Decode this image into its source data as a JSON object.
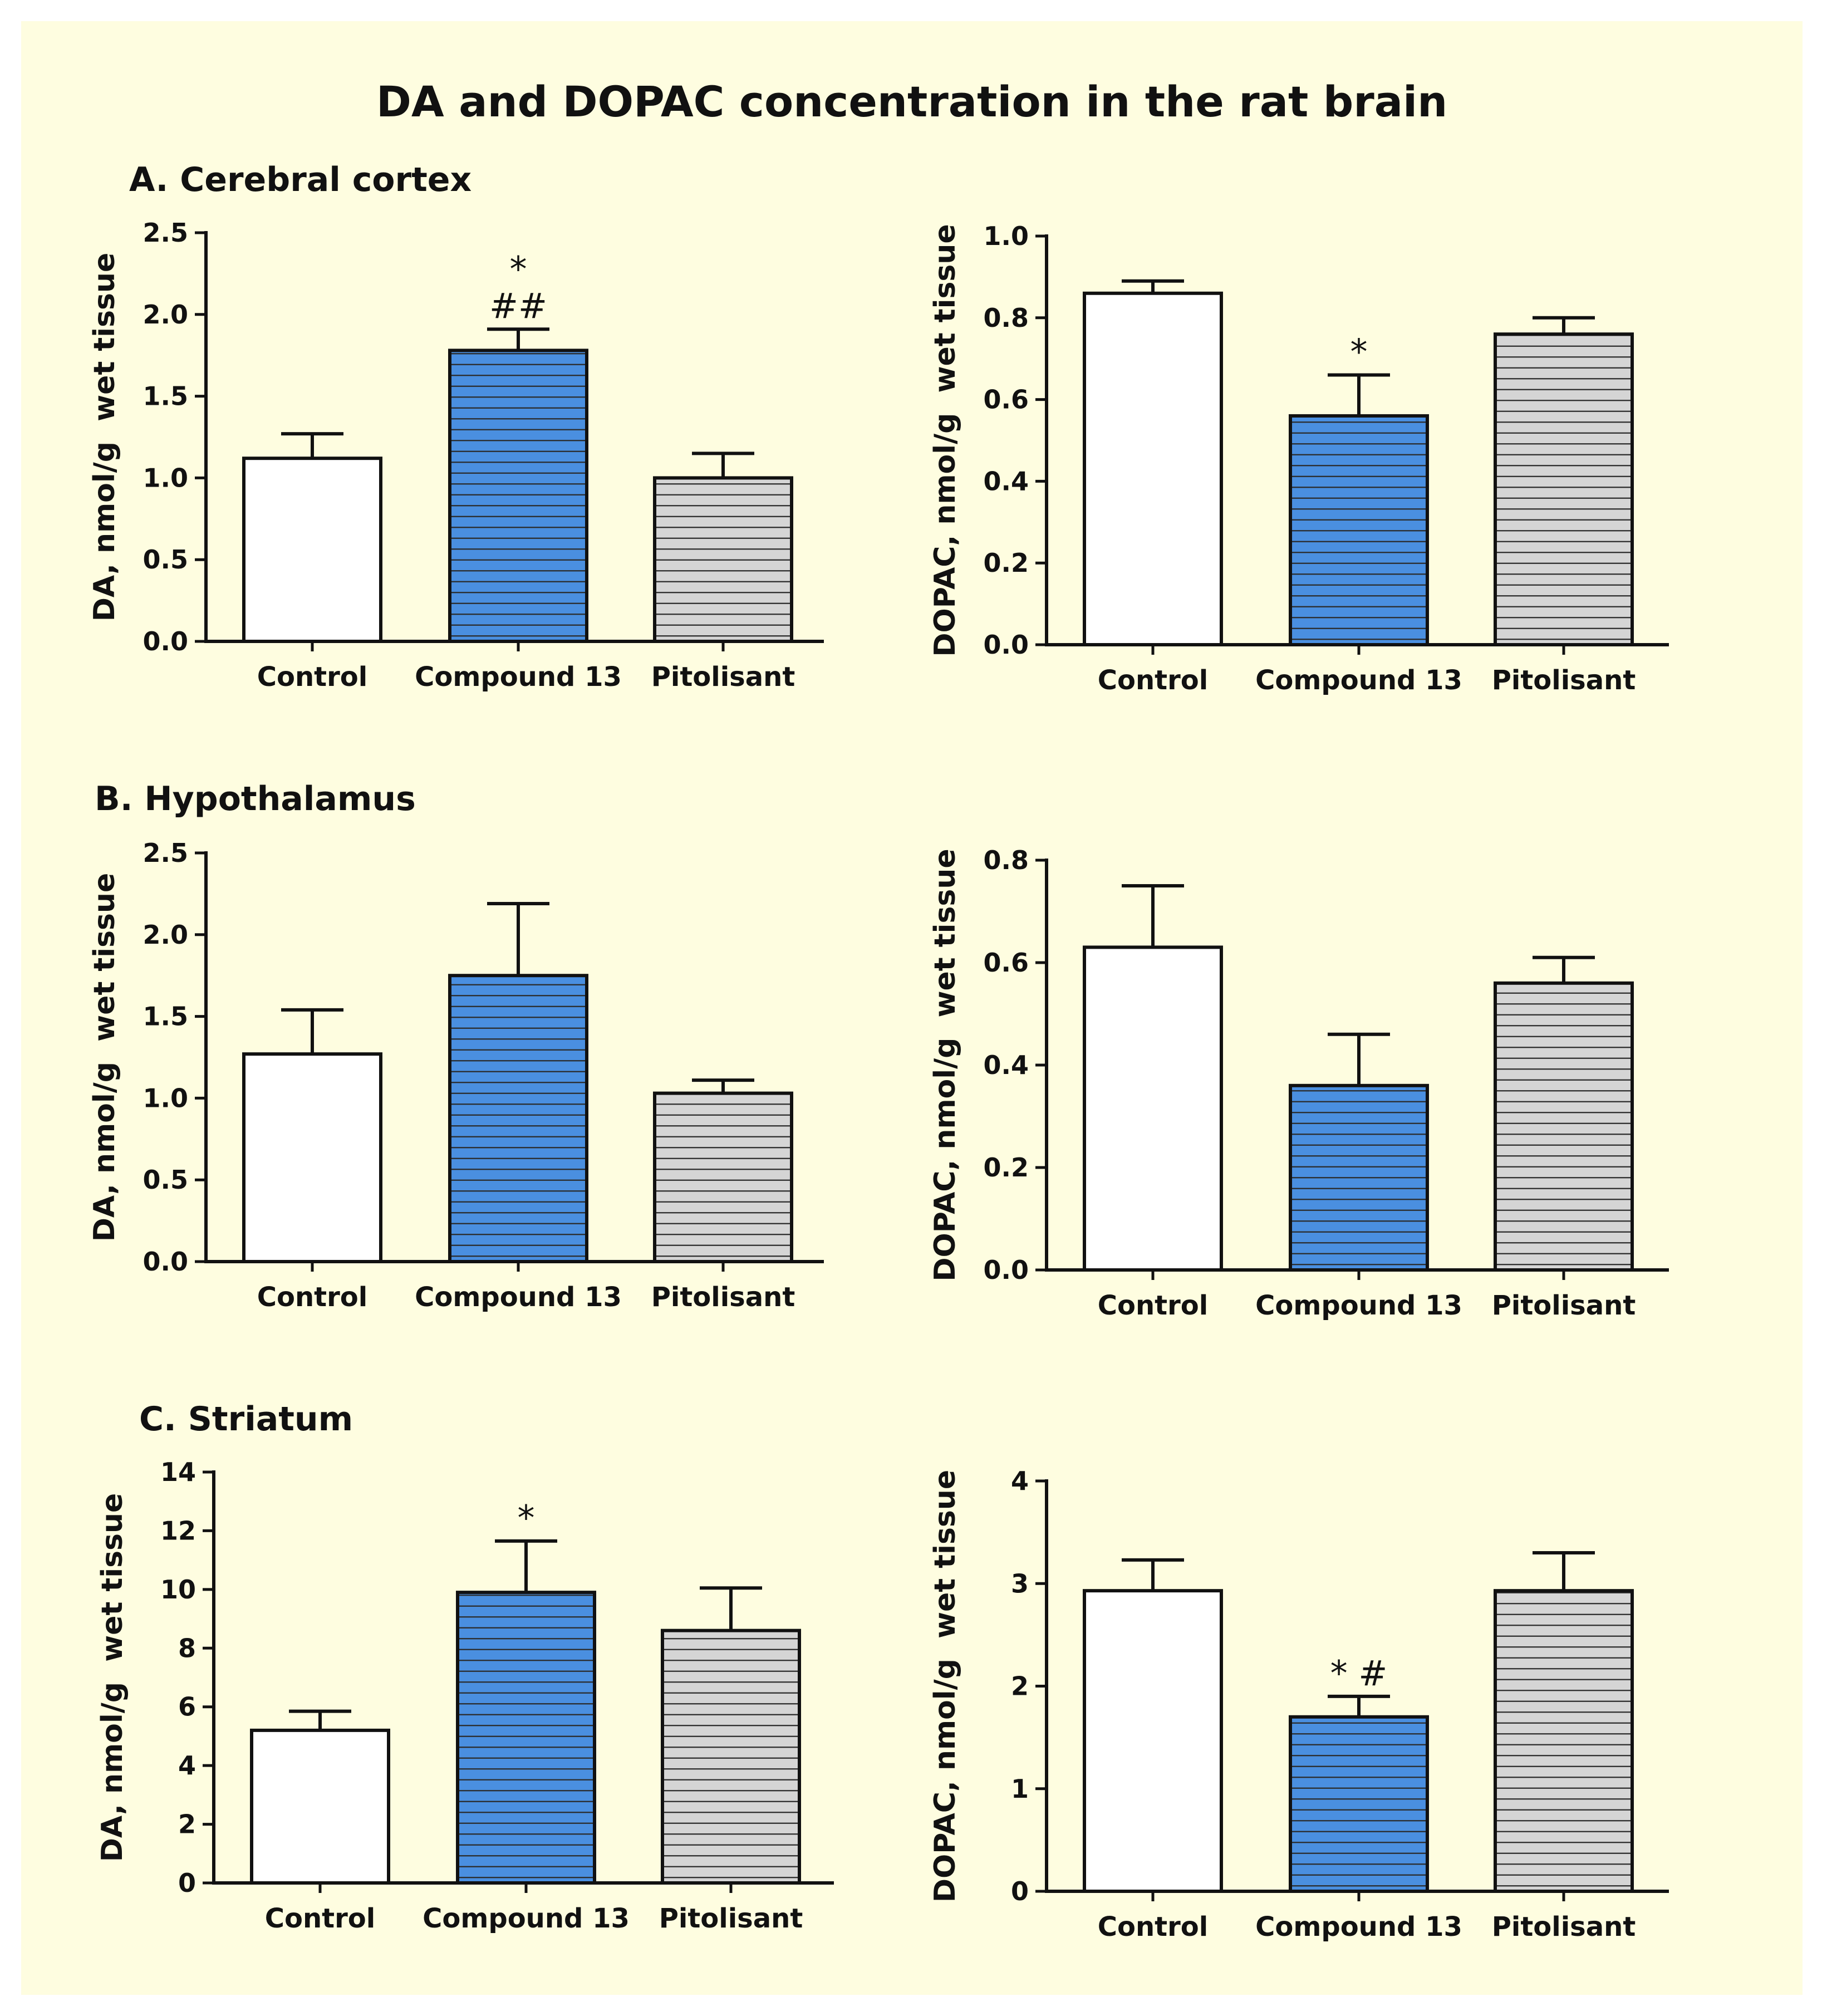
{
  "figure": {
    "title": "DA and DOPAC concentration in the rat brain",
    "sections": [
      {
        "key": "A",
        "label": "A. Cerebral cortex"
      },
      {
        "key": "B",
        "label": "B. Hypothalamus"
      },
      {
        "key": "C",
        "label": "C. Striatum"
      }
    ]
  },
  "colors": {
    "control": "#ffffff",
    "compound13": "#4a8fe0",
    "pitolisant": "#d5d5d5",
    "stripe": "#2b2b2b",
    "panel_bg": "#fefde0"
  },
  "chart_data": [
    {
      "id": "A-DA",
      "type": "bar",
      "section": "A. Cerebral cortex",
      "ylabel": "DA, nmol/g  wet tissue",
      "categories": [
        "Control",
        "Compound 13",
        "Pitolisant"
      ],
      "values": [
        1.12,
        1.78,
        1.0
      ],
      "errors": [
        0.15,
        0.13,
        0.15
      ],
      "annotations": [
        "",
        "*\n##",
        ""
      ],
      "ylim": [
        0,
        2.5
      ],
      "yticks": [
        "0.0",
        "0.5",
        "1.0",
        "1.5",
        "2.0",
        "2.5"
      ]
    },
    {
      "id": "A-DOPAC",
      "type": "bar",
      "section": "A. Cerebral cortex",
      "ylabel": "DOPAC, nmol/g  wet tissue",
      "categories": [
        "Control",
        "Compound 13",
        "Pitolisant"
      ],
      "values": [
        0.86,
        0.56,
        0.76
      ],
      "errors": [
        0.03,
        0.1,
        0.04
      ],
      "annotations": [
        "",
        "*",
        ""
      ],
      "ylim": [
        0,
        1.0
      ],
      "yticks": [
        "0.0",
        "0.2",
        "0.4",
        "0.6",
        "0.8",
        "1.0"
      ]
    },
    {
      "id": "B-DA",
      "type": "bar",
      "section": "B. Hypothalamus",
      "ylabel": "DA, nmol/g  wet tissue",
      "categories": [
        "Control",
        "Compound 13",
        "Pitolisant"
      ],
      "values": [
        1.27,
        1.75,
        1.03
      ],
      "errors": [
        0.27,
        0.44,
        0.08
      ],
      "annotations": [
        "",
        "",
        ""
      ],
      "ylim": [
        0,
        2.5
      ],
      "yticks": [
        "0.0",
        "0.5",
        "1.0",
        "1.5",
        "2.0",
        "2.5"
      ]
    },
    {
      "id": "B-DOPAC",
      "type": "bar",
      "section": "B. Hypothalamus",
      "ylabel": "DOPAC, nmol/g  wet tissue",
      "categories": [
        "Control",
        "Compound 13",
        "Pitolisant"
      ],
      "values": [
        0.63,
        0.36,
        0.56
      ],
      "errors": [
        0.12,
        0.1,
        0.05
      ],
      "annotations": [
        "",
        "",
        ""
      ],
      "ylim": [
        0,
        0.8
      ],
      "yticks": [
        "0.0",
        "0.2",
        "0.4",
        "0.6",
        "0.8"
      ]
    },
    {
      "id": "C-DA",
      "type": "bar",
      "section": "C. Striatum",
      "ylabel": "DA, nmol/g  wet tissue",
      "categories": [
        "Control",
        "Compound 13",
        "Pitolisant"
      ],
      "values": [
        5.2,
        9.9,
        8.6
      ],
      "errors": [
        0.65,
        1.75,
        1.45
      ],
      "annotations": [
        "",
        "*",
        ""
      ],
      "ylim": [
        0,
        14
      ],
      "yticks": [
        "0",
        "2",
        "4",
        "6",
        "8",
        "10",
        "12",
        "14"
      ]
    },
    {
      "id": "C-DOPAC",
      "type": "bar",
      "section": "C. Striatum",
      "ylabel": "DOPAC, nmol/g  wet tissue",
      "categories": [
        "Control",
        "Compound 13",
        "Pitolisant"
      ],
      "values": [
        2.93,
        1.7,
        2.93
      ],
      "errors": [
        0.3,
        0.2,
        0.37
      ],
      "annotations": [
        "",
        "* #",
        ""
      ],
      "ylim": [
        0,
        4
      ],
      "yticks": [
        "0",
        "1",
        "2",
        "3",
        "4"
      ]
    }
  ]
}
